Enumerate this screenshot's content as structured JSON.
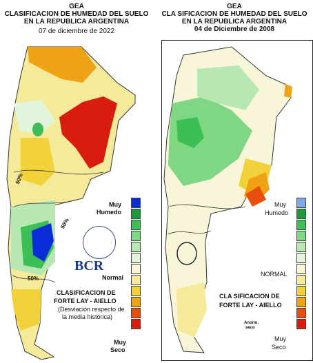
{
  "left_map": {
    "header": {
      "line1": "GEA",
      "line2": "CLASIFICACION DE HUMEDAD DEL SUELO",
      "line3": "EN LA REPUBLICA ARGENTINA",
      "date": "07 de diciembre de 2022"
    },
    "legend": {
      "top_label_1": "Muy",
      "top_label_2": "Humedo",
      "mid_label": "Normal",
      "bottom_label_1": "Muy",
      "bottom_label_2": "Seco",
      "colors": [
        "#0a2bd8",
        "#1f9a3a",
        "#3cbf55",
        "#7fd683",
        "#b7e8b4",
        "#e2f5dc",
        "#f8f5d8",
        "#f4ea9a",
        "#f2d23a",
        "#f0a215",
        "#e84f0d",
        "#d81d0e"
      ]
    },
    "method_title_1": "CLASIFICACION DE",
    "method_title_2": "FORTE LAY - AIELLO",
    "method_note_1": "(Desviación respecto de",
    "method_note_2": "la media histórica)",
    "logo_text": "BCR",
    "contour_labels": [
      "50%",
      "50%",
      "50%"
    ]
  },
  "right_map": {
    "header": {
      "line1": "GEA",
      "line2": "CLA SIFICACION DE HUMEDAD DEL SUELO",
      "line3": "EN LA REPUBLICA ARGENTINA",
      "date": "04 de Diciembre de 2008"
    },
    "legend": {
      "top_label_1": "Muy",
      "top_label_2": "Humedo",
      "mid_label": "NORMAL",
      "bottom_label_1": "Muy",
      "bottom_label_2": "Seco",
      "colors": [
        "#7fa7e8",
        "#1f9a3a",
        "#3cbf55",
        "#7fd683",
        "#b7e8b4",
        "#e2f5dc",
        "#f8f5d8",
        "#f4ea9a",
        "#f2d23a",
        "#f0a215",
        "#e84f0d",
        "#d81d0e"
      ]
    },
    "method_title_1": "CLA SIFICACION DE",
    "method_title_2": "FORTE LAY - AIELLO",
    "anom_label_1": "Anorm.",
    "anom_label_2": "seco"
  }
}
